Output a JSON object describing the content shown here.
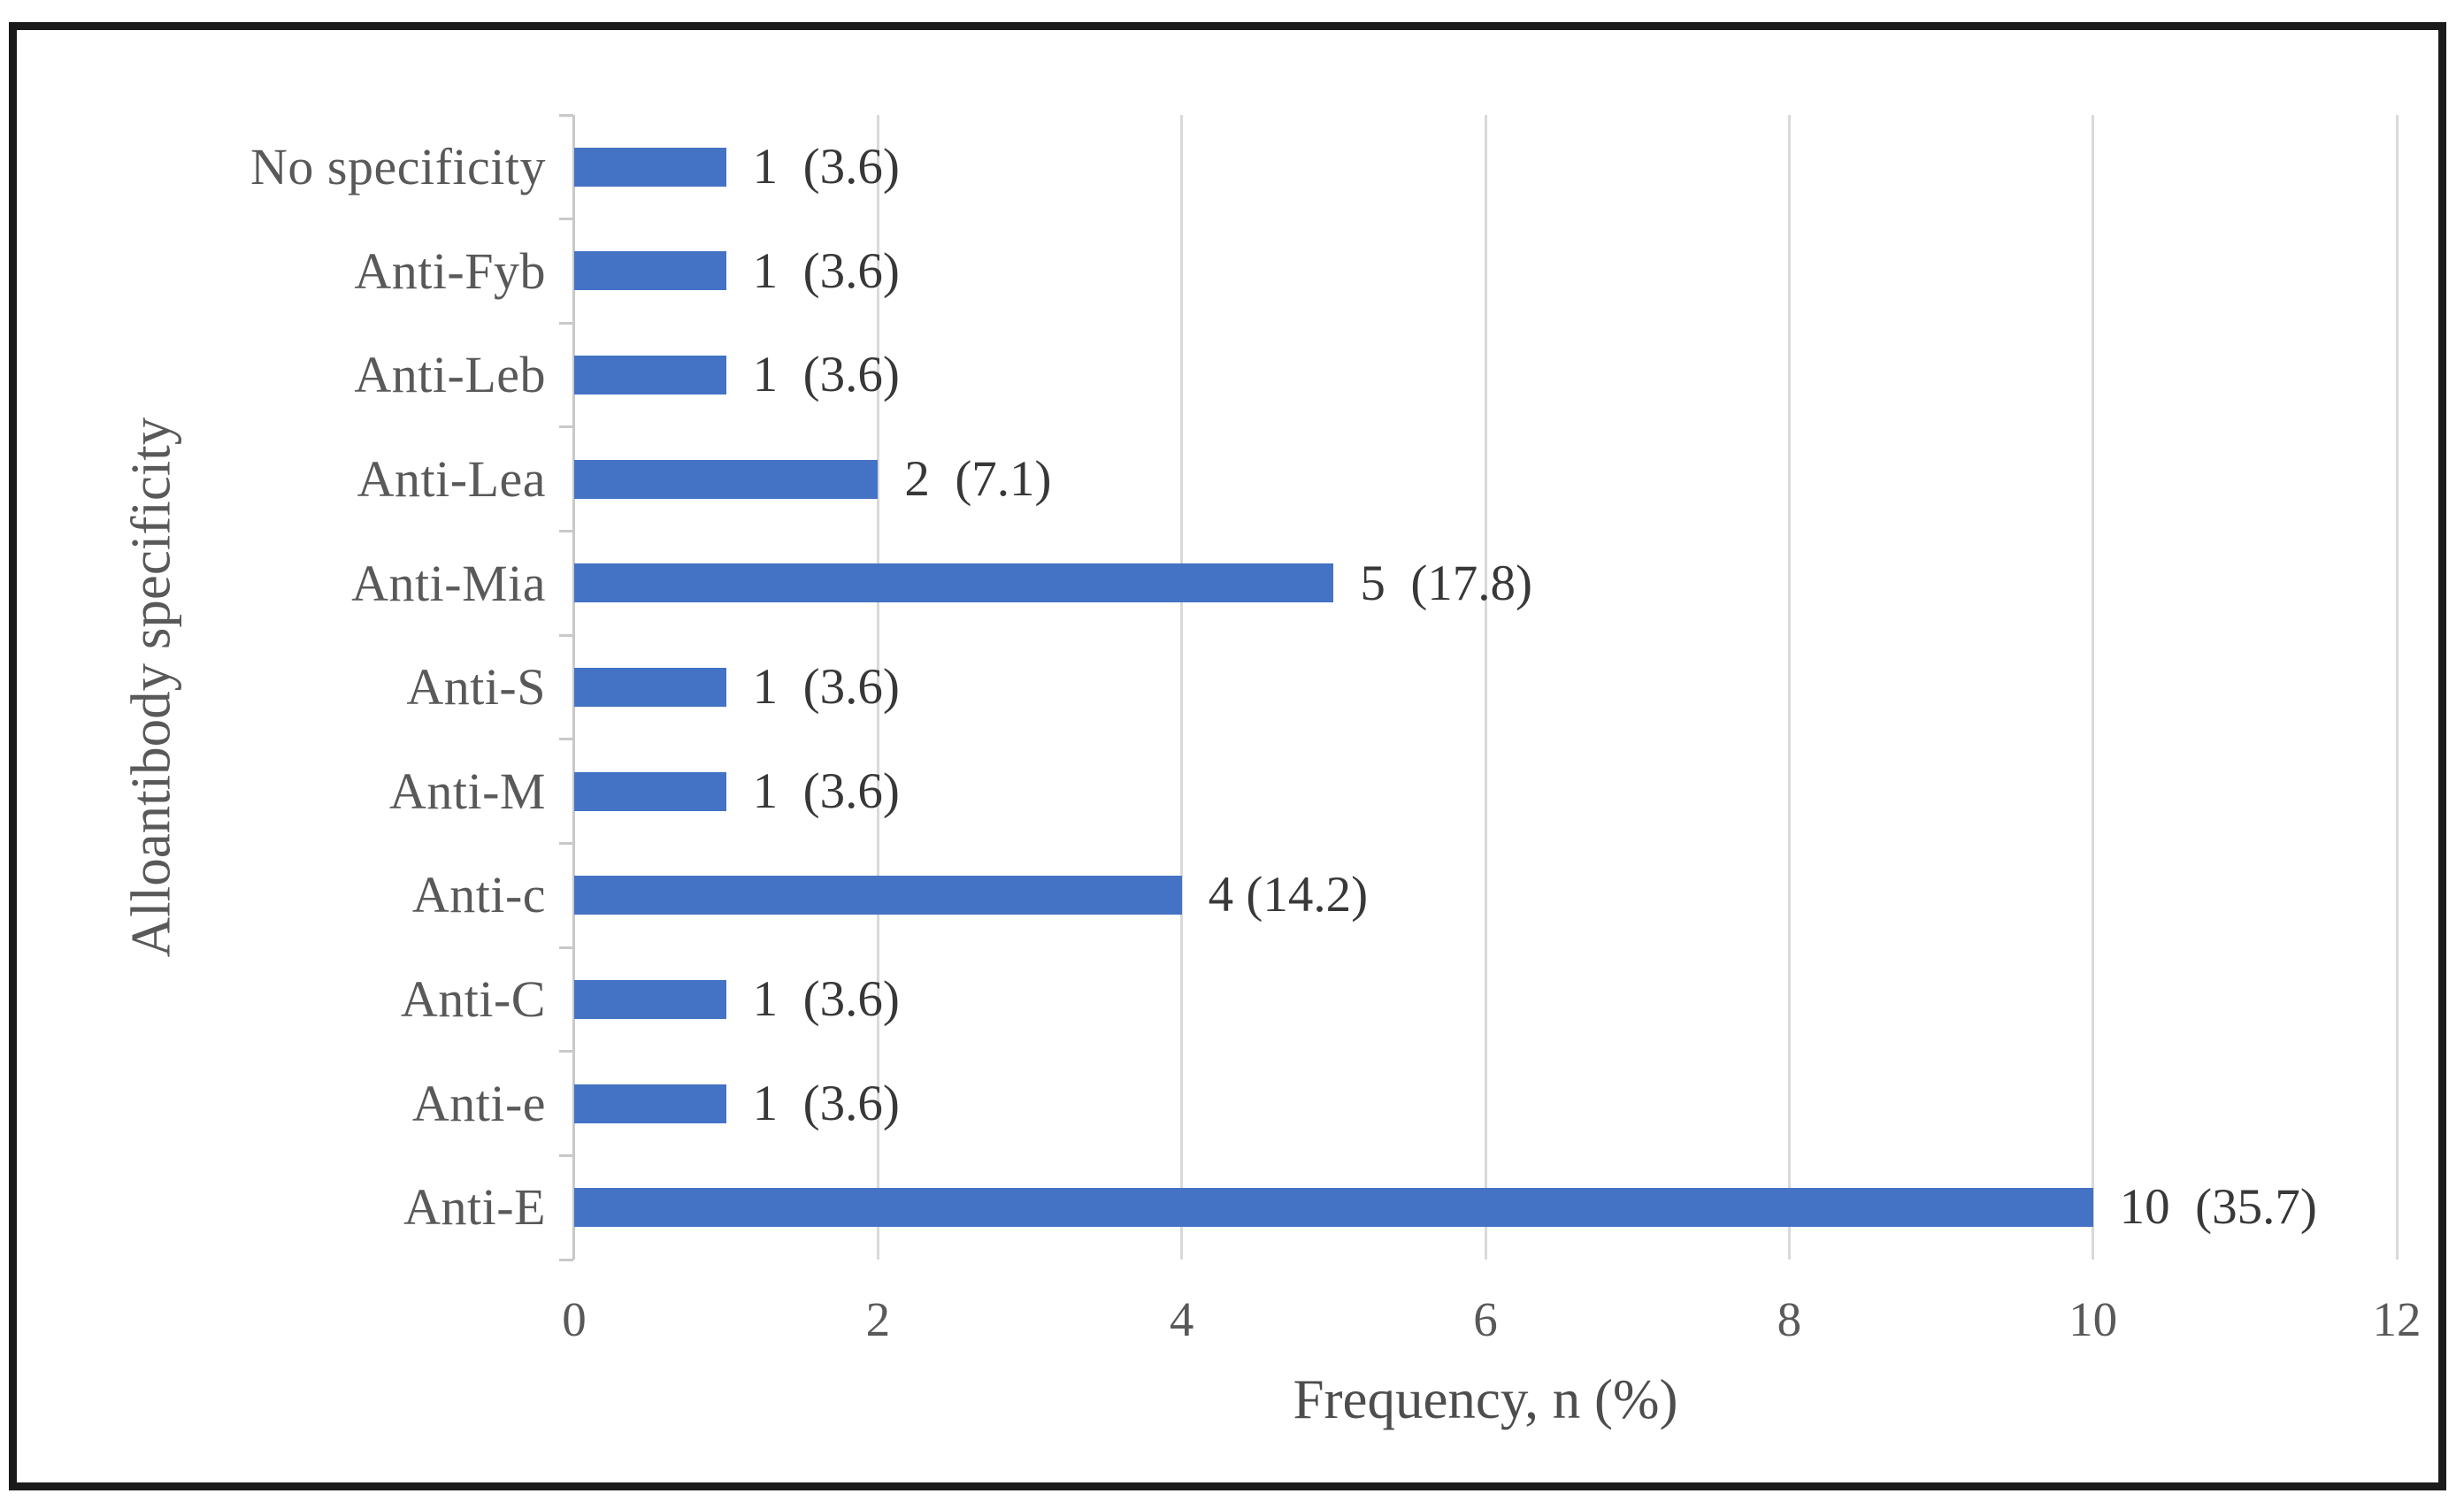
{
  "chart_data": {
    "type": "bar",
    "orientation": "horizontal",
    "title": "",
    "xlabel": "Frequency, n (%)",
    "ylabel": "Alloantibody specificity",
    "categories": [
      "No specificity",
      "Anti-Fyb",
      "Anti-Leb",
      "Anti-Lea",
      "Anti-Mia",
      "Anti-S",
      "Anti-M",
      "Anti-c",
      "Anti-C",
      "Anti-e",
      "Anti-E"
    ],
    "values": [
      1,
      1,
      1,
      2,
      5,
      1,
      1,
      4,
      1,
      1,
      10
    ],
    "percents": [
      3.6,
      3.6,
      3.6,
      7.1,
      17.8,
      3.6,
      3.6,
      14.2,
      3.6,
      3.6,
      35.7
    ],
    "data_labels": [
      "1  (3.6)",
      "1  (3.6)",
      "1  (3.6)",
      "2  (7.1)",
      "5  (17.8)",
      "1  (3.6)",
      "1  (3.6)",
      "4 (14.2)",
      "1  (3.6)",
      "1  (3.6)",
      "10  (35.7)"
    ],
    "xlim": [
      0,
      12
    ],
    "xticks": [
      0,
      2,
      4,
      6,
      8,
      10,
      12
    ],
    "grid": "vertical",
    "legend": "none",
    "bar_color": "#4472c4",
    "gridline_color": "#d9d9d9",
    "axis_line_color": "#c9c9c9",
    "category_label_color": "#595959",
    "data_label_color": "#383838",
    "tick_label_color": "#595959"
  }
}
